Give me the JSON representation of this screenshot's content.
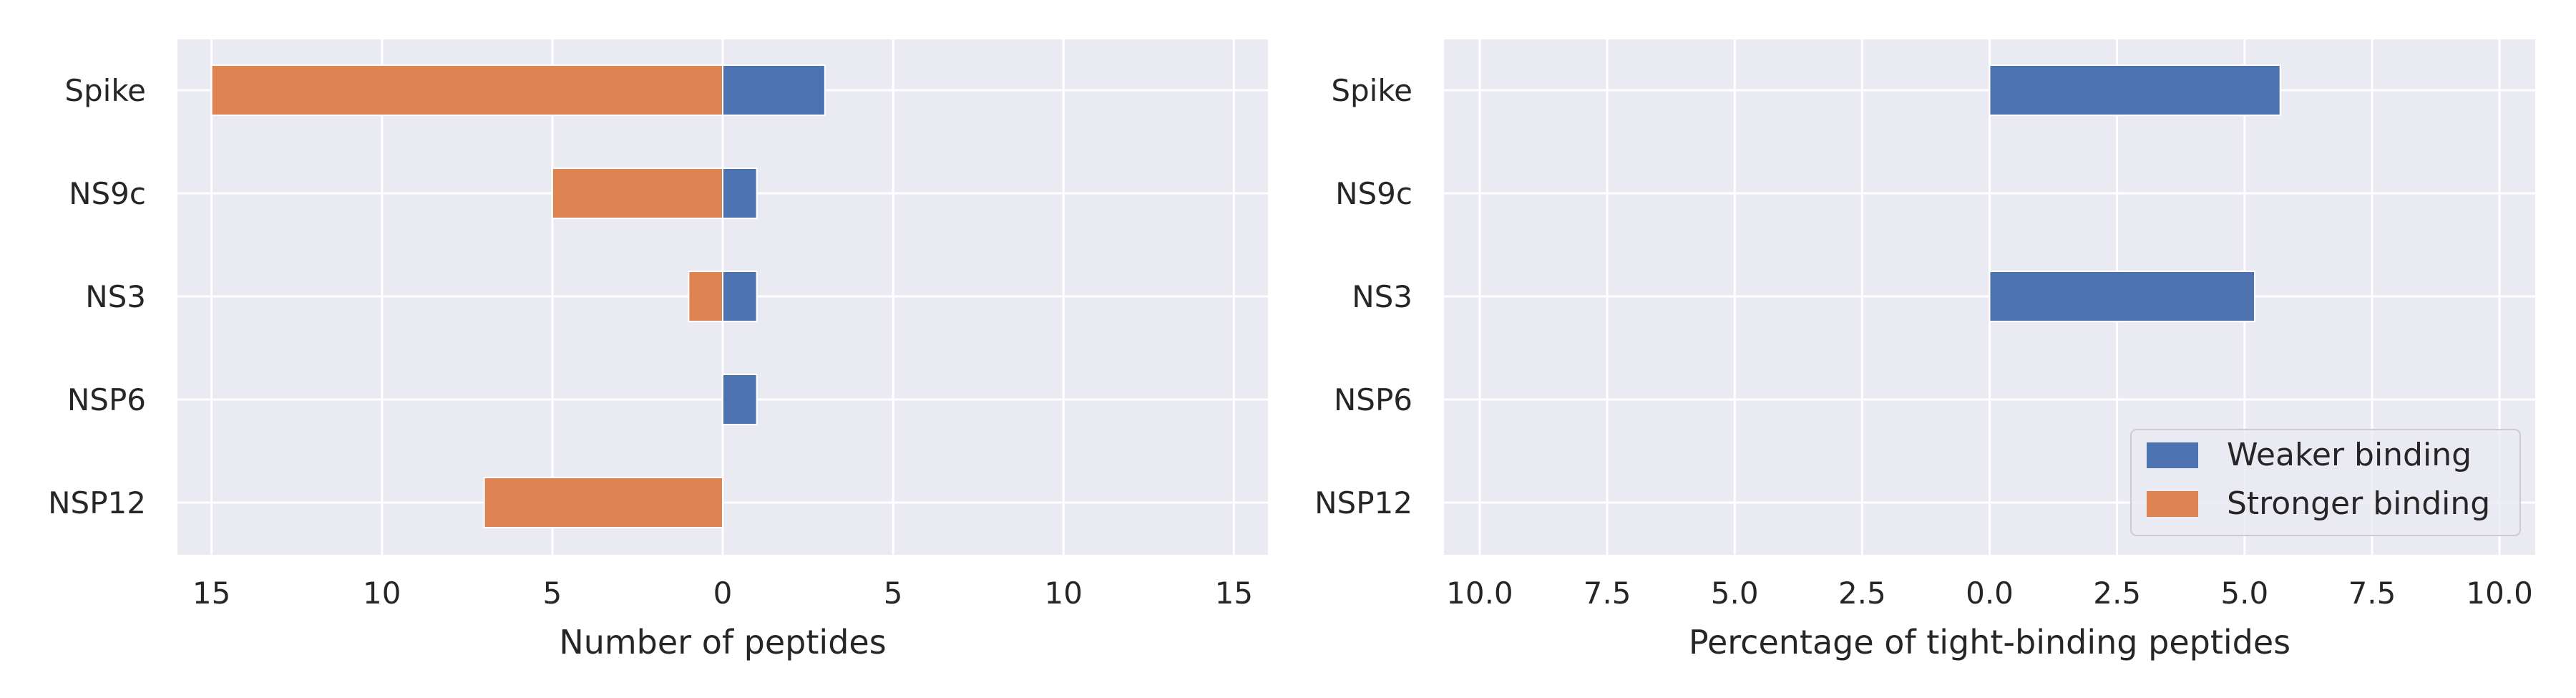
{
  "colors": {
    "background": "#eaeaf2",
    "grid": "#ffffff",
    "weaker": "#4c72b0",
    "stronger": "#dd8452",
    "legend_bg": "#eaeaf2",
    "legend_border": "#cccccc"
  },
  "legend": {
    "placement": "lower-right",
    "entries": [
      "Weaker binding",
      "Stronger binding"
    ]
  },
  "chart_data": [
    {
      "type": "bar",
      "orientation": "horizontal",
      "diverging": true,
      "categories": [
        "Spike",
        "NS9c",
        "NS3",
        "NSP6",
        "NSP12"
      ],
      "series": [
        {
          "name": "Weaker binding",
          "side": "right",
          "values": [
            3,
            1,
            1,
            1,
            0
          ]
        },
        {
          "name": "Stronger binding",
          "side": "left",
          "values": [
            15,
            5,
            1,
            0,
            7
          ]
        }
      ],
      "xlabel": "Number of peptides",
      "xlim": [
        -16,
        16
      ],
      "xticks": [
        -15,
        -10,
        -5,
        0,
        5,
        10,
        15
      ],
      "xtick_labels": [
        "15",
        "10",
        "5",
        "0",
        "5",
        "10",
        "15"
      ],
      "grid": true
    },
    {
      "type": "bar",
      "orientation": "horizontal",
      "diverging": true,
      "categories": [
        "Spike",
        "NS9c",
        "NS3",
        "NSP6",
        "NSP12"
      ],
      "series": [
        {
          "name": "Weaker binding",
          "side": "right",
          "values": [
            5.7,
            0,
            5.2,
            0,
            0
          ]
        },
        {
          "name": "Stronger binding",
          "side": "left",
          "values": [
            0,
            0,
            0,
            0,
            0
          ]
        }
      ],
      "xlabel": "Percentage of tight-binding peptides",
      "xlim": [
        -10.7,
        10.7
      ],
      "xticks": [
        -10,
        -7.5,
        -5,
        -2.5,
        0,
        2.5,
        5,
        7.5,
        10
      ],
      "xtick_labels": [
        "10.0",
        "7.5",
        "5.0",
        "2.5",
        "0.0",
        "2.5",
        "5.0",
        "7.5",
        "10.0"
      ],
      "grid": true
    }
  ]
}
